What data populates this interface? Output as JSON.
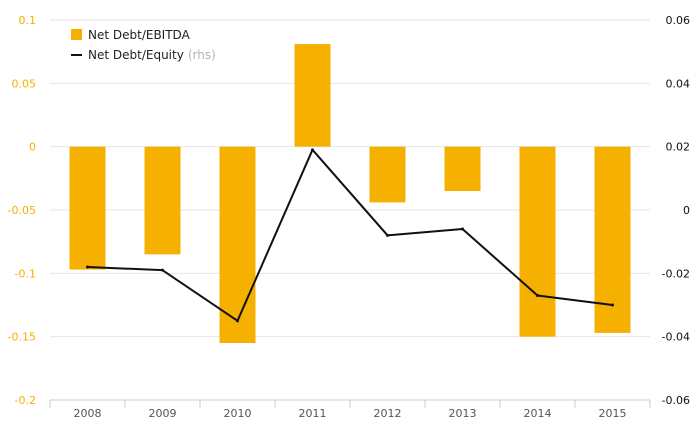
{
  "chart_data": {
    "type": "bar+line",
    "categories": [
      "2008",
      "2009",
      "2010",
      "2011",
      "2012",
      "2013",
      "2014",
      "2015"
    ],
    "series": [
      {
        "name": "Net Debt/EBITDA",
        "type": "bar",
        "axis": "left",
        "values": [
          -0.097,
          -0.085,
          -0.155,
          0.081,
          -0.044,
          -0.035,
          -0.15,
          -0.147
        ]
      },
      {
        "name": "Net Debt/Equity",
        "name_note": "(rhs)",
        "type": "line",
        "axis": "right",
        "values": [
          -0.018,
          -0.019,
          -0.035,
          0.019,
          -0.008,
          -0.006,
          -0.027,
          -0.03
        ]
      }
    ],
    "left_axis": {
      "ylim": [
        -0.2,
        0.1
      ],
      "ticks": [
        "0.1",
        "0.05",
        "0",
        "-0.05",
        "-0.1",
        "-0.15",
        "-0.2"
      ],
      "tick_values": [
        0.1,
        0.05,
        0,
        -0.05,
        -0.1,
        -0.15,
        -0.2
      ]
    },
    "right_axis": {
      "ylim": [
        -0.06,
        0.06
      ],
      "ticks": [
        "0.06",
        "0.04",
        "0.02",
        "0",
        "-0.02",
        "-0.04",
        "-0.06"
      ],
      "tick_values": [
        0.06,
        0.04,
        0.02,
        0,
        -0.02,
        -0.04,
        -0.06
      ]
    },
    "legend_position": "top-left",
    "grid": true,
    "colors": {
      "bar": "#F5B000",
      "line": "#111111",
      "grid": "#e6e6e6",
      "left_ticks": "#F5B000",
      "right_ticks": "#111111"
    }
  }
}
